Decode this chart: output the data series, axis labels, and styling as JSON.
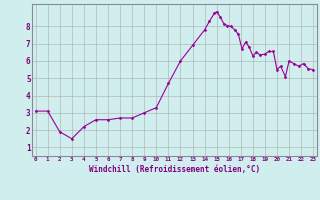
{
  "hours_extended": [
    0,
    1,
    2,
    3,
    4,
    5,
    6,
    7,
    8,
    9,
    10,
    11,
    12,
    13,
    14,
    14.4,
    14.8,
    15.0,
    15.3,
    15.6,
    15.9,
    16.2,
    16.5,
    16.8,
    17.1,
    17.4,
    17.7,
    18.0,
    18.3,
    18.6,
    19.0,
    19.3,
    19.7,
    20.0,
    20.3,
    20.7,
    21.0,
    21.4,
    21.8,
    22.2,
    22.6,
    23.0
  ],
  "values_extended": [
    3.1,
    3.1,
    1.9,
    1.5,
    2.2,
    2.6,
    2.6,
    2.7,
    2.7,
    3.0,
    3.3,
    4.7,
    6.0,
    6.9,
    7.8,
    8.3,
    8.75,
    8.85,
    8.55,
    8.15,
    8.05,
    8.0,
    7.8,
    7.55,
    6.7,
    7.1,
    6.8,
    6.3,
    6.5,
    6.35,
    6.4,
    6.55,
    6.55,
    5.5,
    5.7,
    5.1,
    6.0,
    5.85,
    5.7,
    5.85,
    5.55,
    5.5
  ],
  "line_color": "#990099",
  "marker_color": "#990099",
  "bg_color": "#d0eeee",
  "grid_color": "#aaaaaa",
  "border_color": "#888899",
  "xlabel": "Windchill (Refroidissement éolien,°C)",
  "xlabel_color": "#800080",
  "tick_color": "#800080",
  "ylim": [
    0.5,
    9.3
  ],
  "xlim": [
    -0.3,
    23.3
  ],
  "yticks": [
    1,
    2,
    3,
    4,
    5,
    6,
    7,
    8
  ],
  "xticks": [
    0,
    1,
    2,
    3,
    4,
    5,
    6,
    7,
    8,
    9,
    10,
    11,
    12,
    13,
    14,
    15,
    16,
    17,
    18,
    19,
    20,
    21,
    22,
    23
  ]
}
